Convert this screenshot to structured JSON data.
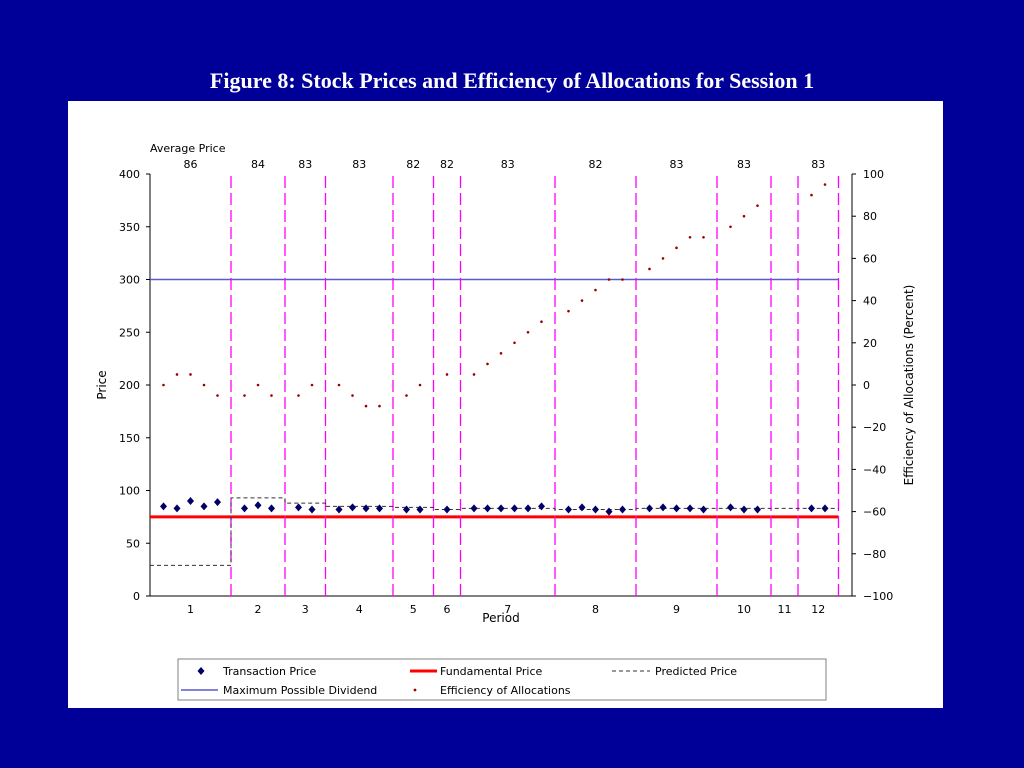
{
  "colors": {
    "page_background": "#000099",
    "title_text": "#ffffff",
    "panel_background": "#ffffff",
    "period_boundary": "#ff00ff",
    "transaction_price": "#000066",
    "fundamental_price": "#ff0000",
    "predicted_price": "#333333",
    "maximum_possible_dividend": "#5a5acd",
    "efficiency_of_allocations": "#990000"
  },
  "chart_data": {
    "type": "scatter",
    "title": "Figure 8: Stock Prices and Efficiency of Allocations for Session 1",
    "xlabel": "Period",
    "ylabel": "Price",
    "y2label": "Efficiency of Allocations (Percent)",
    "ylim": [
      0,
      400
    ],
    "y_tick_labels": [
      "0",
      "50",
      "100",
      "150",
      "200",
      "250",
      "300",
      "350",
      "400"
    ],
    "y2lim": [
      -100,
      100
    ],
    "y2_tick_labels": [
      "−100",
      "−80",
      "−60",
      "−40",
      "−20",
      "0",
      "20",
      "40",
      "60",
      "80",
      "100"
    ],
    "grid": false,
    "legend_placement": "bottom",
    "average_price_label": "Average Price",
    "fundamental_price": 75,
    "maximum_possible_dividend": 300,
    "periods": [
      {
        "label": "1",
        "average_price": "86",
        "predicted_price": 29,
        "transaction_prices": [
          85,
          83,
          90,
          85,
          89
        ],
        "efficiency": [
          0,
          5,
          5,
          0,
          -5
        ]
      },
      {
        "label": "2",
        "average_price": "84",
        "predicted_price": 93,
        "transaction_prices": [
          83,
          86,
          83
        ],
        "efficiency": [
          -5,
          0,
          -5
        ]
      },
      {
        "label": "3",
        "average_price": "83",
        "predicted_price": 88,
        "transaction_prices": [
          84,
          82
        ],
        "efficiency": [
          -5,
          0
        ]
      },
      {
        "label": "4",
        "average_price": "83",
        "predicted_price": 85,
        "transaction_prices": [
          82,
          84,
          83,
          83
        ],
        "efficiency": [
          0,
          -5,
          -10,
          -10
        ]
      },
      {
        "label": "5",
        "average_price": "82",
        "predicted_price": 84,
        "transaction_prices": [
          82,
          82
        ],
        "efficiency": [
          -5,
          0
        ]
      },
      {
        "label": "6",
        "average_price": "82",
        "predicted_price": 82,
        "transaction_prices": [
          82
        ],
        "efficiency": [
          5
        ]
      },
      {
        "label": "7",
        "average_price": "83",
        "predicted_price": 83,
        "transaction_prices": [
          83,
          83,
          83,
          83,
          83,
          85
        ],
        "efficiency": [
          5,
          10,
          15,
          20,
          25,
          30
        ]
      },
      {
        "label": "8",
        "average_price": "82",
        "predicted_price": 82,
        "transaction_prices": [
          82,
          84,
          82,
          80,
          82
        ],
        "efficiency": [
          35,
          40,
          45,
          50,
          50
        ]
      },
      {
        "label": "9",
        "average_price": "83",
        "predicted_price": 83,
        "transaction_prices": [
          83,
          84,
          83,
          83,
          82
        ],
        "efficiency": [
          55,
          60,
          65,
          70,
          70
        ]
      },
      {
        "label": "10",
        "average_price": "83",
        "predicted_price": 83,
        "transaction_prices": [
          84,
          82,
          82
        ],
        "efficiency": [
          75,
          80,
          85
        ]
      },
      {
        "label": "11",
        "average_price": null,
        "predicted_price": 83,
        "transaction_prices": [],
        "efficiency": []
      },
      {
        "label": "12",
        "average_price": "83",
        "predicted_price": 83,
        "transaction_prices": [
          83,
          83
        ],
        "efficiency": [
          90,
          95
        ]
      }
    ],
    "legend": [
      {
        "label": "Transaction Price",
        "marker": "diamond"
      },
      {
        "label": "Fundamental Price",
        "marker": "thick-solid-line"
      },
      {
        "label": "Predicted Price",
        "marker": "dashed-line"
      },
      {
        "label": "Maximum Possible Dividend",
        "marker": "solid-line"
      },
      {
        "label": "Efficiency of Allocations",
        "marker": "dot"
      }
    ]
  }
}
